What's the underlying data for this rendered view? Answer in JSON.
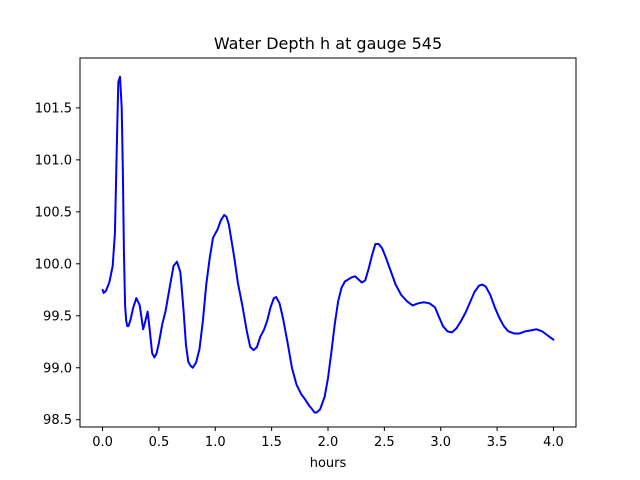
{
  "chart_data": {
    "type": "line",
    "title": "Water Depth h at gauge 545",
    "xlabel": "hours",
    "ylabel": "",
    "xlim": [
      -0.2,
      4.2
    ],
    "ylim": [
      98.43,
      101.98
    ],
    "grid": false,
    "x_ticks": [
      0.0,
      0.5,
      1.0,
      1.5,
      2.0,
      2.5,
      3.0,
      3.5,
      4.0
    ],
    "x_tick_labels": [
      "0.0",
      "0.5",
      "1.0",
      "1.5",
      "2.0",
      "2.5",
      "3.0",
      "3.5",
      "4.0"
    ],
    "y_ticks": [
      98.5,
      99.0,
      99.5,
      100.0,
      100.5,
      101.0,
      101.5
    ],
    "y_tick_labels": [
      "98.5",
      "99.0",
      "99.5",
      "100.0",
      "100.5",
      "101.0",
      "101.5"
    ],
    "series": [
      {
        "color": "#0000ff",
        "x": [
          0.0,
          0.01,
          0.03,
          0.06,
          0.09,
          0.11,
          0.12,
          0.13,
          0.14,
          0.155,
          0.17,
          0.18,
          0.19,
          0.2,
          0.21,
          0.22,
          0.23,
          0.25,
          0.27,
          0.3,
          0.33,
          0.36,
          0.38,
          0.4,
          0.42,
          0.44,
          0.46,
          0.48,
          0.5,
          0.53,
          0.56,
          0.6,
          0.63,
          0.66,
          0.69,
          0.7,
          0.72,
          0.74,
          0.76,
          0.78,
          0.8,
          0.83,
          0.86,
          0.89,
          0.92,
          0.95,
          0.98,
          1.02,
          1.05,
          1.08,
          1.1,
          1.12,
          1.14,
          1.17,
          1.2,
          1.24,
          1.28,
          1.31,
          1.34,
          1.37,
          1.4,
          1.43,
          1.46,
          1.49,
          1.52,
          1.54,
          1.57,
          1.6,
          1.64,
          1.68,
          1.72,
          1.76,
          1.8,
          1.83,
          1.86,
          1.88,
          1.9,
          1.93,
          1.97,
          2.0,
          2.03,
          2.06,
          2.09,
          2.12,
          2.15,
          2.18,
          2.21,
          2.24,
          2.27,
          2.3,
          2.33,
          2.36,
          2.39,
          2.42,
          2.45,
          2.48,
          2.51,
          2.55,
          2.6,
          2.65,
          2.7,
          2.75,
          2.8,
          2.85,
          2.9,
          2.95,
          2.98,
          3.02,
          3.06,
          3.1,
          3.14,
          3.18,
          3.22,
          3.26,
          3.3,
          3.34,
          3.37,
          3.4,
          3.44,
          3.48,
          3.52,
          3.56,
          3.6,
          3.65,
          3.7,
          3.75,
          3.8,
          3.85,
          3.9,
          3.95,
          4.0
        ],
        "y": [
          99.75,
          99.72,
          99.74,
          99.82,
          99.98,
          100.3,
          100.8,
          101.3,
          101.75,
          101.8,
          101.5,
          100.9,
          100.1,
          99.6,
          99.45,
          99.4,
          99.4,
          99.47,
          99.57,
          99.67,
          99.6,
          99.37,
          99.45,
          99.54,
          99.35,
          99.14,
          99.1,
          99.14,
          99.24,
          99.42,
          99.55,
          99.8,
          99.98,
          100.02,
          99.92,
          99.8,
          99.53,
          99.22,
          99.06,
          99.02,
          99.0,
          99.05,
          99.18,
          99.45,
          99.8,
          100.05,
          100.25,
          100.33,
          100.42,
          100.47,
          100.45,
          100.38,
          100.25,
          100.05,
          99.82,
          99.6,
          99.35,
          99.2,
          99.17,
          99.2,
          99.3,
          99.36,
          99.45,
          99.58,
          99.67,
          99.68,
          99.62,
          99.48,
          99.25,
          99.0,
          98.84,
          98.75,
          98.69,
          98.64,
          98.6,
          98.57,
          98.57,
          98.6,
          98.72,
          98.9,
          99.15,
          99.42,
          99.64,
          99.77,
          99.83,
          99.85,
          99.87,
          99.88,
          99.85,
          99.82,
          99.84,
          99.95,
          100.08,
          100.19,
          100.19,
          100.15,
          100.07,
          99.95,
          99.8,
          99.7,
          99.64,
          99.6,
          99.62,
          99.63,
          99.62,
          99.58,
          99.5,
          99.4,
          99.35,
          99.34,
          99.38,
          99.45,
          99.53,
          99.63,
          99.73,
          99.79,
          99.8,
          99.78,
          99.7,
          99.58,
          99.48,
          99.4,
          99.35,
          99.33,
          99.33,
          99.35,
          99.36,
          99.37,
          99.35,
          99.31,
          99.27
        ]
      }
    ]
  }
}
